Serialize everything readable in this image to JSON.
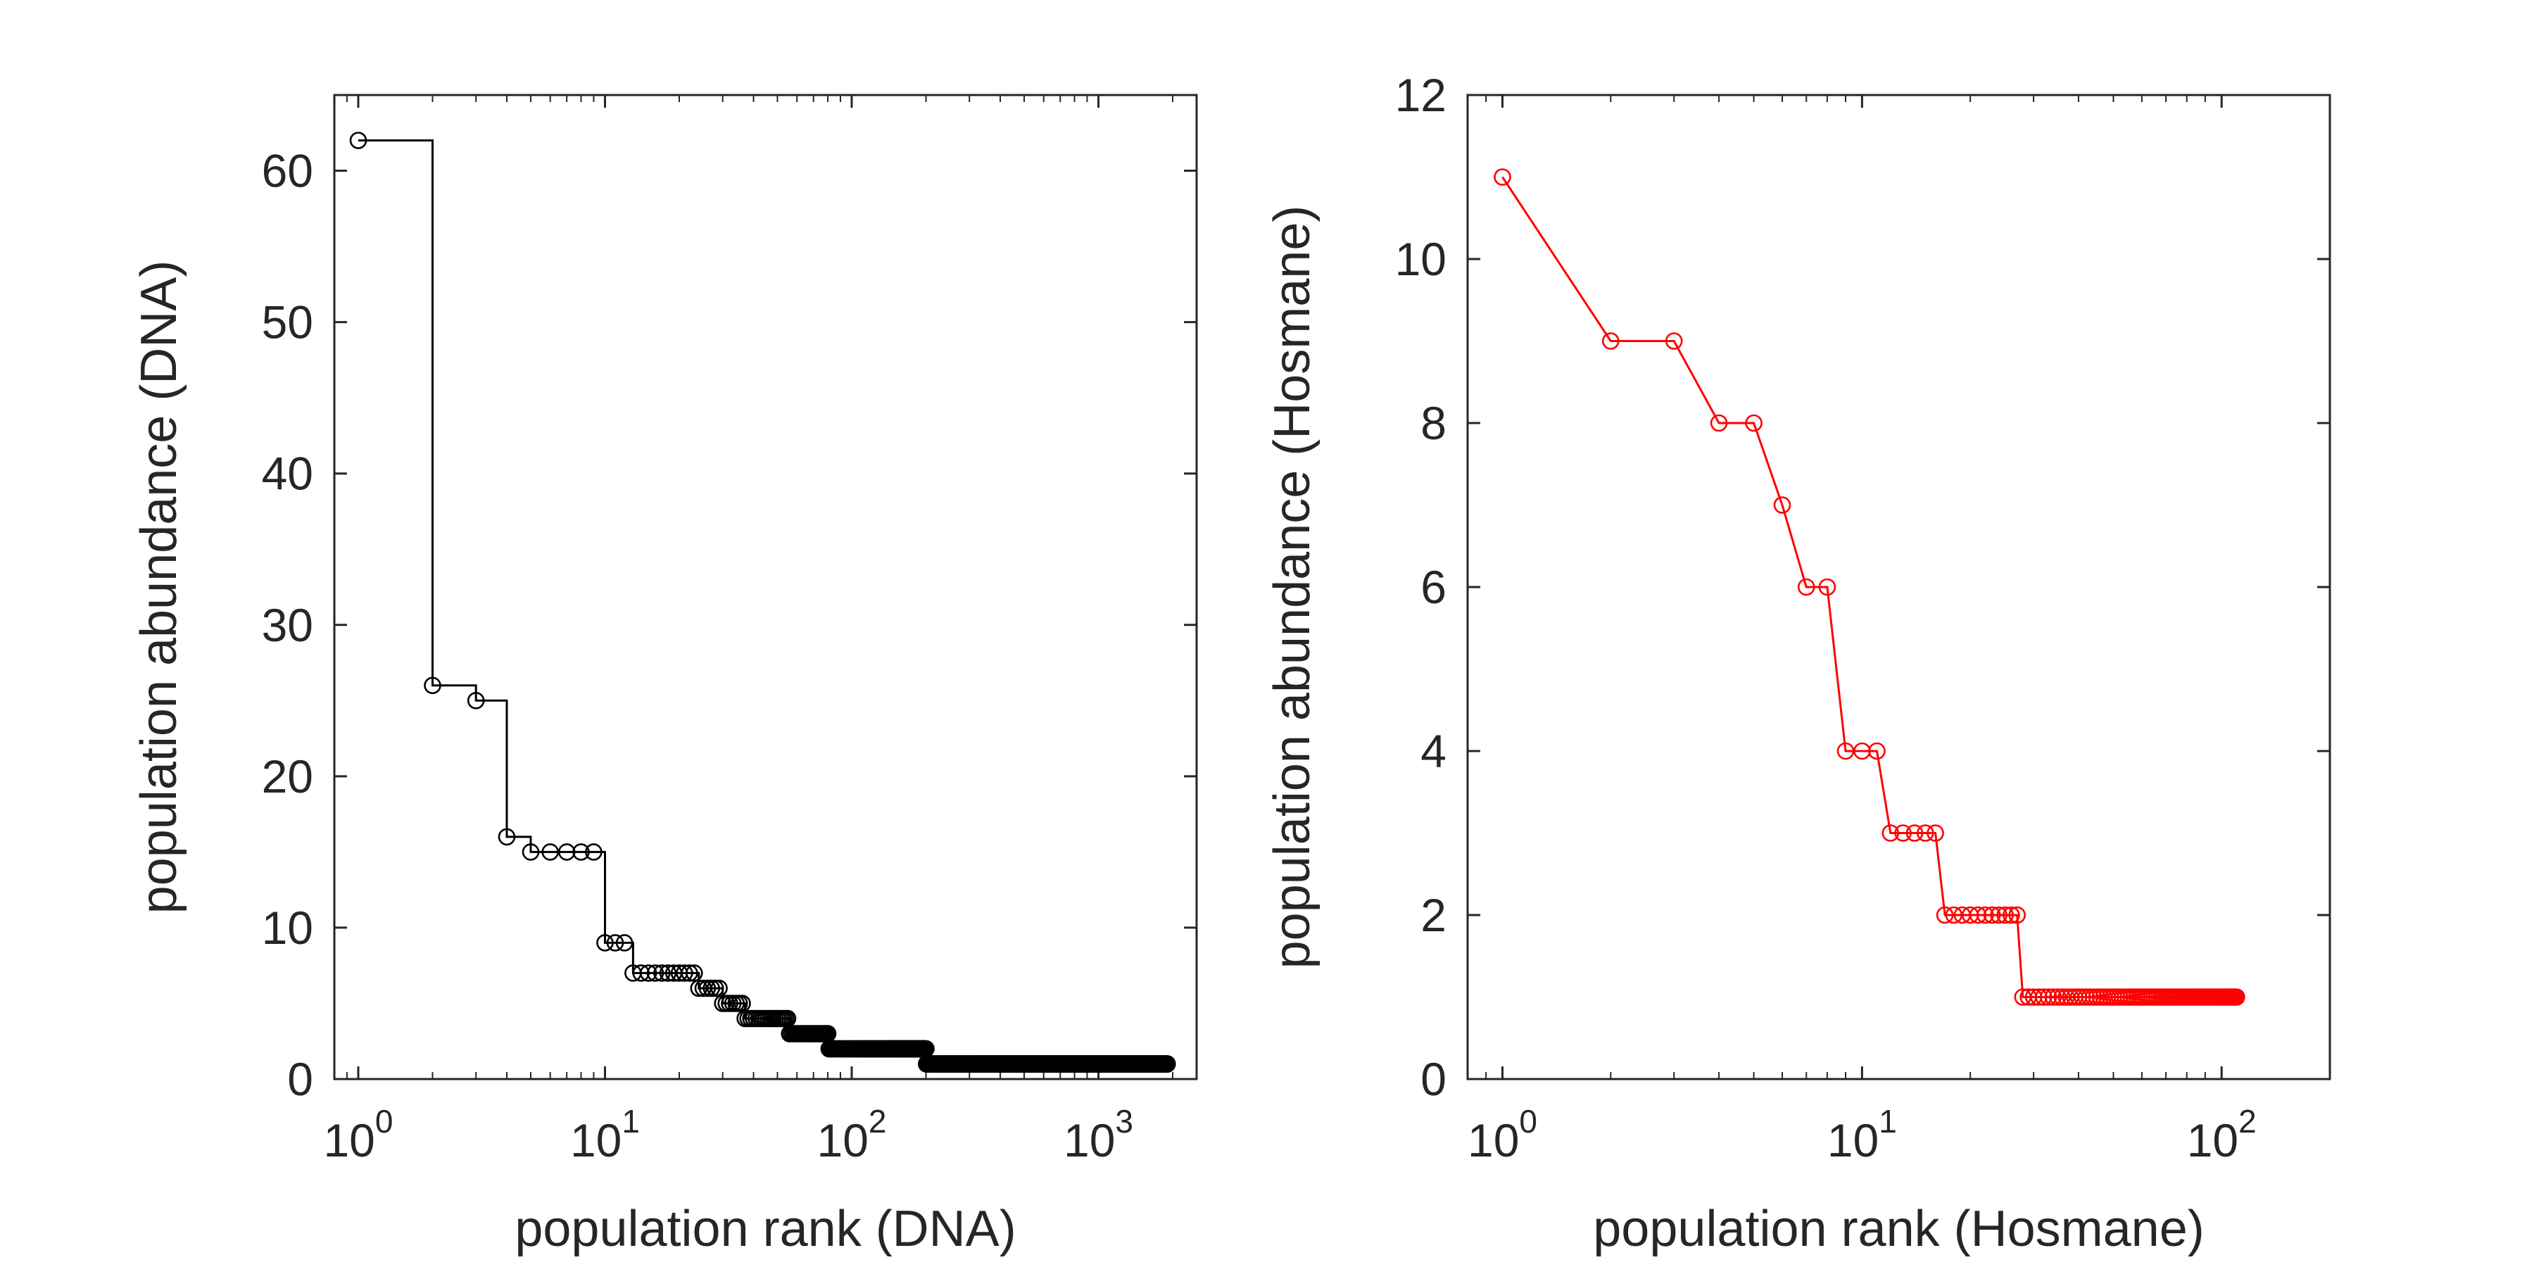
{
  "chart_data": [
    {
      "type": "line",
      "style": "stairs",
      "xlabel": "population rank (DNA)",
      "ylabel": "population abundance (DNA)",
      "xscale": "log",
      "xlim": [
        0.8,
        2500
      ],
      "ylim": [
        0,
        65
      ],
      "xticks": [
        1,
        10,
        100,
        1000
      ],
      "xtick_labels": [
        {
          "base": "10",
          "exp": "0"
        },
        {
          "base": "10",
          "exp": "1"
        },
        {
          "base": "10",
          "exp": "2"
        },
        {
          "base": "10",
          "exp": "3"
        }
      ],
      "yticks": [
        0,
        10,
        20,
        30,
        40,
        50,
        60
      ],
      "ytick_labels": [
        "0",
        "10",
        "20",
        "30",
        "40",
        "50",
        "60"
      ],
      "color": "#000000",
      "marker": "open-circle",
      "grid": false,
      "ranked_values": [
        {
          "from_rank": 1,
          "to_rank": 1,
          "value": 62
        },
        {
          "from_rank": 2,
          "to_rank": 2,
          "value": 26
        },
        {
          "from_rank": 3,
          "to_rank": 3,
          "value": 25
        },
        {
          "from_rank": 4,
          "to_rank": 4,
          "value": 16
        },
        {
          "from_rank": 5,
          "to_rank": 9,
          "value": 15
        },
        {
          "from_rank": 10,
          "to_rank": 12,
          "value": 9
        },
        {
          "from_rank": 13,
          "to_rank": 23,
          "value": 7
        },
        {
          "from_rank": 24,
          "to_rank": 29,
          "value": 6
        },
        {
          "from_rank": 30,
          "to_rank": 36,
          "value": 5
        },
        {
          "from_rank": 37,
          "to_rank": 55,
          "value": 4
        },
        {
          "from_rank": 56,
          "to_rank": 80,
          "value": 3
        },
        {
          "from_rank": 81,
          "to_rank": 200,
          "value": 2
        },
        {
          "from_rank": 201,
          "to_rank": 1900,
          "value": 1
        }
      ]
    },
    {
      "type": "line",
      "xlabel": "population rank (Hosmane)",
      "ylabel": "population abundance (Hosmane)",
      "xscale": "log",
      "xlim": [
        0.8,
        200
      ],
      "ylim": [
        0,
        12
      ],
      "xticks": [
        1,
        10,
        100
      ],
      "xtick_labels": [
        {
          "base": "10",
          "exp": "0"
        },
        {
          "base": "10",
          "exp": "1"
        },
        {
          "base": "10",
          "exp": "2"
        }
      ],
      "yticks": [
        0,
        2,
        4,
        6,
        8,
        10,
        12
      ],
      "ytick_labels": [
        "0",
        "2",
        "4",
        "6",
        "8",
        "10",
        "12"
      ],
      "color": "#ff0000",
      "marker": "open-circle",
      "grid": false,
      "ranked_values": [
        {
          "from_rank": 1,
          "to_rank": 1,
          "value": 11
        },
        {
          "from_rank": 2,
          "to_rank": 3,
          "value": 9
        },
        {
          "from_rank": 4,
          "to_rank": 5,
          "value": 8
        },
        {
          "from_rank": 6,
          "to_rank": 6,
          "value": 7
        },
        {
          "from_rank": 7,
          "to_rank": 8,
          "value": 6
        },
        {
          "from_rank": 9,
          "to_rank": 11,
          "value": 4
        },
        {
          "from_rank": 12,
          "to_rank": 16,
          "value": 3
        },
        {
          "from_rank": 17,
          "to_rank": 27,
          "value": 2
        },
        {
          "from_rank": 28,
          "to_rank": 110,
          "value": 1
        }
      ]
    }
  ]
}
